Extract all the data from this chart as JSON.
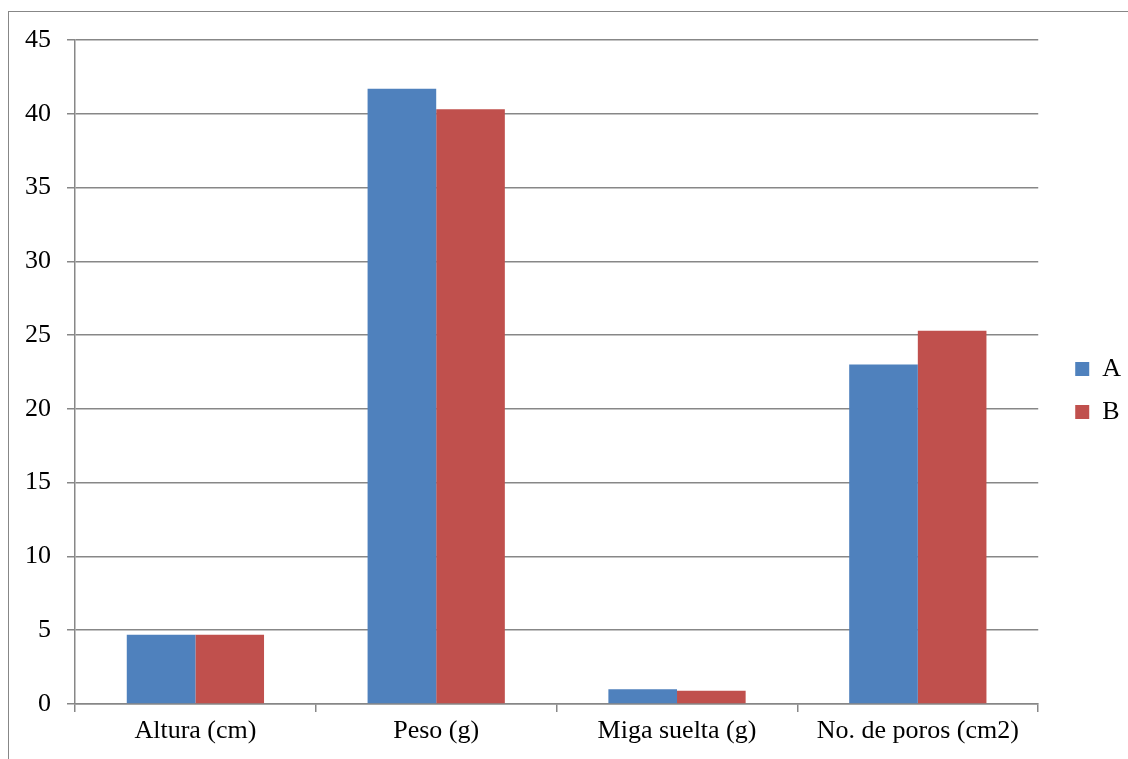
{
  "chart_data": {
    "type": "bar",
    "categories": [
      "Altura (cm)",
      "Peso (g)",
      "Miga suelta (g)",
      "No. de poros (cm2)"
    ],
    "series": [
      {
        "name": "A",
        "color": "#4f81bd",
        "values": [
          4.7,
          41.7,
          1.0,
          23.0
        ]
      },
      {
        "name": "B",
        "color": "#c0504d",
        "values": [
          4.7,
          40.3,
          0.9,
          25.3
        ]
      }
    ],
    "ylim": [
      0,
      45
    ],
    "yticks": [
      0,
      5,
      10,
      15,
      20,
      25,
      30,
      35,
      40,
      45
    ],
    "grid": "y",
    "legend": "right"
  }
}
